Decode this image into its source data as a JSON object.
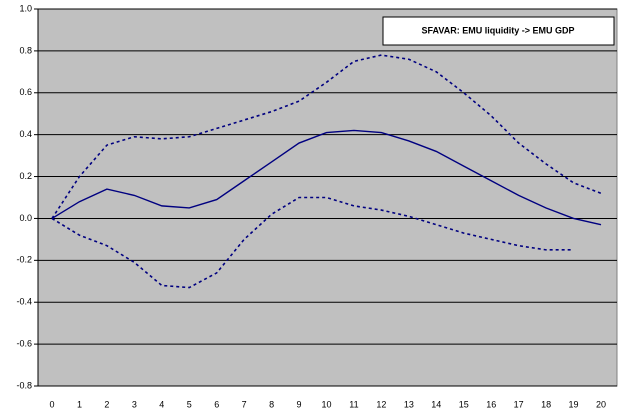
{
  "chart_data": {
    "type": "line",
    "title": "SFAVAR: EMU liquidity -> EMU GDP",
    "categories": [
      "0",
      "1",
      "2",
      "3",
      "4",
      "5",
      "6",
      "7",
      "8",
      "9",
      "10",
      "11",
      "12",
      "13",
      "14",
      "15",
      "16",
      "17",
      "18",
      "19",
      "20"
    ],
    "series": [
      {
        "color": "#000080",
        "line_style": "solid",
        "values": [
          0.0,
          0.08,
          0.14,
          0.11,
          0.06,
          0.05,
          0.09,
          0.18,
          0.27,
          0.36,
          0.41,
          0.42,
          0.41,
          0.37,
          0.32,
          0.25,
          0.18,
          0.11,
          0.05,
          0.0,
          -0.03
        ]
      },
      {
        "color": "#000080",
        "line_style": "dashed",
        "values": [
          0.0,
          0.2,
          0.35,
          0.39,
          0.38,
          0.39,
          0.43,
          0.47,
          0.51,
          0.56,
          0.65,
          0.75,
          0.78,
          0.76,
          0.7,
          0.6,
          0.49,
          0.36,
          0.26,
          0.17,
          0.12
        ]
      },
      {
        "color": "#000080",
        "line_style": "dashed",
        "values": [
          0.0,
          -0.08,
          -0.13,
          -0.21,
          -0.32,
          -0.33,
          -0.26,
          -0.1,
          0.02,
          0.1,
          0.1,
          0.06,
          0.04,
          0.01,
          -0.03,
          -0.07,
          -0.1,
          -0.13,
          -0.15,
          -0.15,
          null
        ]
      }
    ],
    "ylim": [
      -0.8,
      1.0
    ],
    "yticks": [
      {
        "value": -0.8,
        "label": "-0.8"
      },
      -0.6,
      -0.4,
      -0.2,
      {
        "value": 0,
        "label": "0.0"
      },
      0.2,
      0.4,
      0.6,
      0.8,
      {
        "value": 1,
        "label": "1.0"
      }
    ],
    "grid": true,
    "plot_background": "#c0c0c0"
  }
}
